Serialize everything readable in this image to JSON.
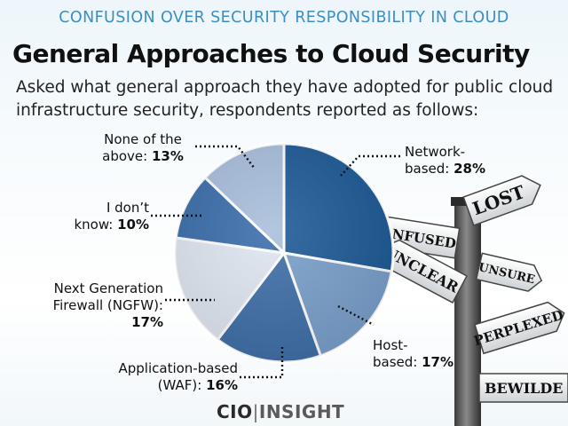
{
  "banner": "CONFUSION OVER SECURITY RESPONSIBILITY IN CLOUD",
  "chart_data": {
    "type": "pie",
    "title": "General Approaches to Cloud Security",
    "subtitle": "Asked what general approach they have adopted for public cloud infrastructure security, respondents reported as follows:",
    "slices": [
      {
        "label_lines": [
          "Network-",
          "based: "
        ],
        "value_text": "28%",
        "value": 28,
        "color": "#1d5a96"
      },
      {
        "label_lines": [
          "Host-",
          "based: "
        ],
        "value_text": "17%",
        "value": 17,
        "color": "#7a9fcb"
      },
      {
        "label_lines": [
          "Application-based",
          "(WAF): "
        ],
        "value_text": "16%",
        "value": 16,
        "color": "#3f6fa8"
      },
      {
        "label_lines": [
          "Next Generation",
          "Firewall (NGFW):",
          ""
        ],
        "value_text": "17%",
        "value": 17,
        "color": "#dfe7f2"
      },
      {
        "label_lines": [
          "I don’t",
          "know: "
        ],
        "value_text": "10%",
        "value": 10,
        "color": "#3a6eab"
      },
      {
        "label_lines": [
          "None of the",
          "above: "
        ],
        "value_text": "13%",
        "value": 13,
        "color": "#a9bfdd"
      }
    ]
  },
  "signpost": {
    "signs": [
      "LOST",
      "CONFUSED",
      "UNSURE",
      "UNCLEAR",
      "PERPLEXED",
      "BEWILDE"
    ]
  },
  "logo": {
    "left": "CIO",
    "separator": "|",
    "right": "INSIGHT"
  }
}
